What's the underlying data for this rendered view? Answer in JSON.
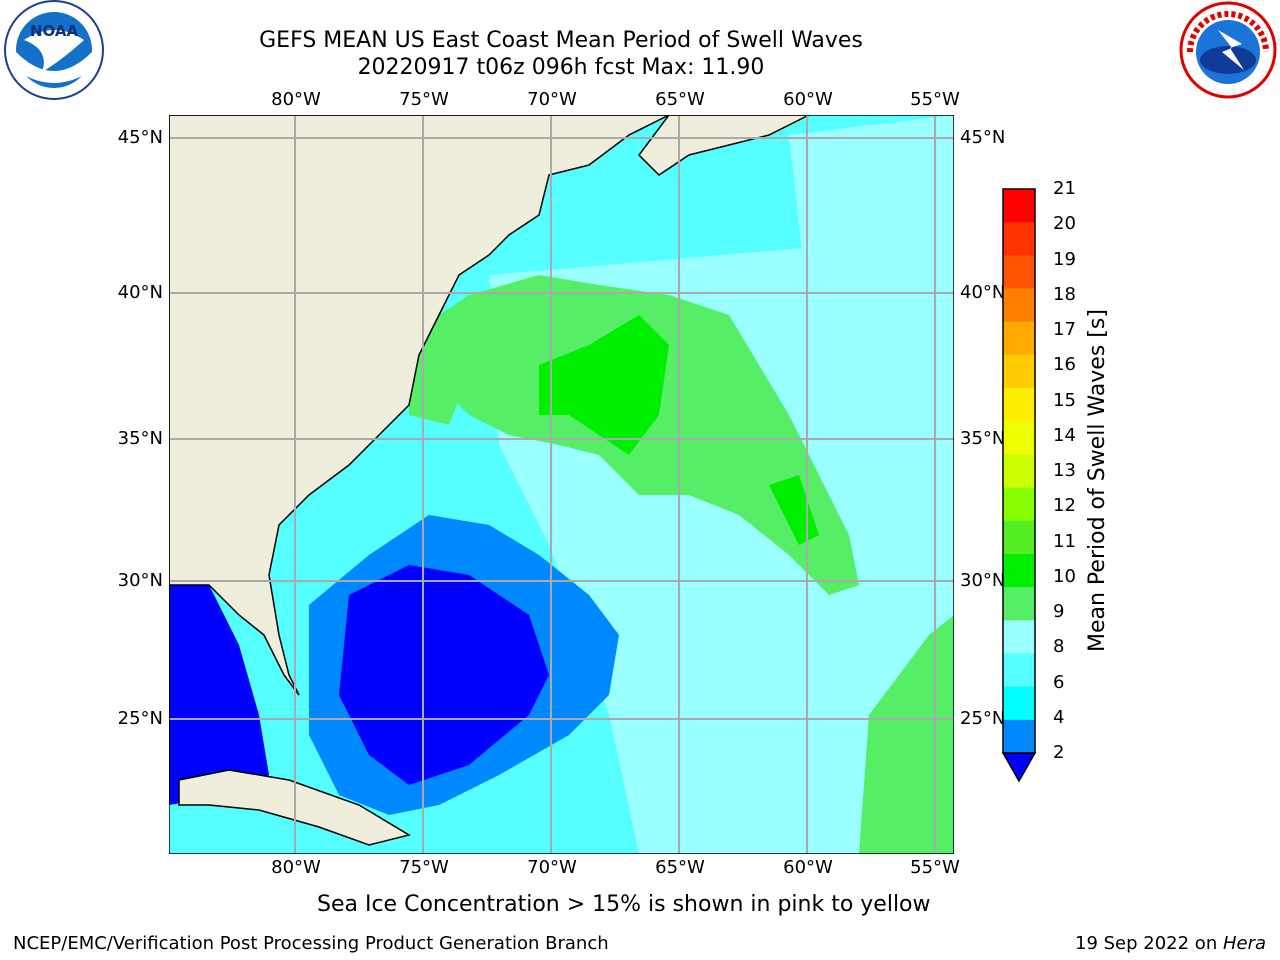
{
  "header": {
    "title_line1": "GEFS MEAN US East Coast Mean Period of Swell Waves",
    "title_line2": "20220917 t06z 096h fcst   Max: 11.90"
  },
  "logos": {
    "left": {
      "icon": "noaa-logo",
      "text": "NOAA"
    },
    "right": {
      "icon": "nws-logo",
      "ring_text": "NATIONAL WEATHER SERVICE"
    }
  },
  "map": {
    "lon_labels": [
      "80°W",
      "75°W",
      "70°W",
      "65°W",
      "60°W",
      "55°W"
    ],
    "lat_labels": [
      "45°N",
      "40°N",
      "35°N",
      "30°N",
      "25°N"
    ],
    "land_color": "#efeedd",
    "ocean_colors": {
      "2-4": "#0000ff",
      "4-6": "#0088ff",
      "6-8": "#00ffff",
      "8-9": "#99ffff",
      "9-10": "#55ee66",
      "10-11": "#00ee00"
    }
  },
  "colorbar": {
    "title": "Mean Period of Swell Waves [s]",
    "ticks": [
      "21",
      "20",
      "19",
      "18",
      "17",
      "16",
      "15",
      "14",
      "13",
      "12",
      "11",
      "10",
      "9",
      "8",
      "6",
      "4",
      "2"
    ],
    "colors": [
      "#ff0000",
      "#ff3300",
      "#ff5500",
      "#ff8000",
      "#ffaa00",
      "#ffcc00",
      "#ffee00",
      "#eeff00",
      "#ccff00",
      "#88ff00",
      "#55ee22",
      "#00ee00",
      "#55ee66",
      "#99ffff",
      "#55ffff",
      "#00ffff",
      "#0088ff"
    ],
    "under_color": "#0000ff"
  },
  "note": "Sea Ice Concentration > 15% is shown in pink to yellow",
  "footer": {
    "left": "NCEP/EMC/Verification Post Processing Product Generation Branch",
    "right_date": "19 Sep 2022 on ",
    "right_host": "Hera"
  }
}
